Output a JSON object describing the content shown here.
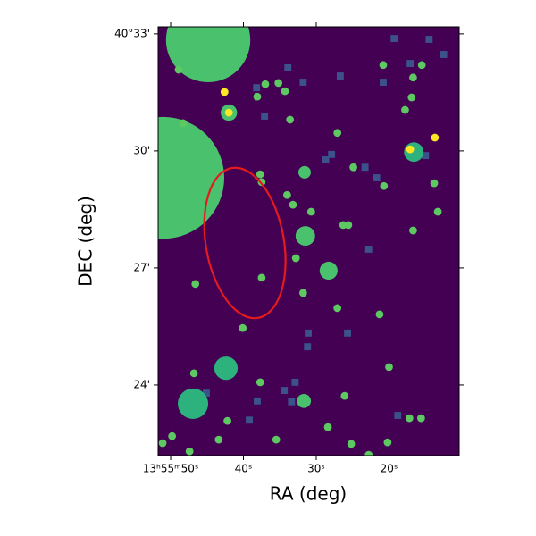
{
  "chart_data": {
    "type": "sky",
    "xlabel": "RA (deg)",
    "ylabel": "DEC (deg)",
    "xlim": [
      51.72,
      10.37
    ],
    "ylim": [
      22.19,
      33.18
    ],
    "xticks": [
      {
        "value": 50,
        "label": "13ʰ55ᵐ50ˢ"
      },
      {
        "value": 40,
        "label": "40ˢ"
      },
      {
        "value": 30,
        "label": "30ˢ"
      },
      {
        "value": 20,
        "label": "20ˢ"
      }
    ],
    "yticks": [
      {
        "value": 33,
        "label": "40°33'"
      },
      {
        "value": 30,
        "label": "30'"
      },
      {
        "value": 27,
        "label": "27'"
      },
      {
        "value": 24,
        "label": "24'"
      }
    ],
    "background": "#440154",
    "series": [
      {
        "marker": "square",
        "color": "#3b528b",
        "r": 0.09,
        "x": [
          19.3,
          14.5,
          12.5,
          17.1,
          33.9,
          31.8,
          26.7,
          20.8,
          38.2,
          37.1,
          27.9,
          28.7,
          23.3,
          21.7,
          15.0,
          22.8,
          31.1,
          25.7,
          31.2,
          32.9,
          34.4,
          38.1,
          33.4,
          45.1,
          39.2,
          18.8
        ],
        "y": [
          32.88,
          32.86,
          32.47,
          32.24,
          32.13,
          31.76,
          31.92,
          31.76,
          31.62,
          30.89,
          29.91,
          29.77,
          29.58,
          29.31,
          29.88,
          27.48,
          25.33,
          25.33,
          24.98,
          24.07,
          23.86,
          23.59,
          23.57,
          23.79,
          23.1,
          23.22
        ]
      },
      {
        "marker": "circle",
        "color": "#4ac16d",
        "x": [
          44.85,
          51.0,
          31.5,
          28.3,
          42.0,
          31.6,
          31.7
        ],
        "y": [
          32.84,
          29.31,
          27.82,
          26.93,
          30.98,
          29.45,
          23.59
        ],
        "r": [
          1.08,
          1.56,
          0.25,
          0.23,
          0.21,
          0.16,
          0.18
        ]
      },
      {
        "marker": "circle",
        "color": "#2db27d",
        "x": [
          46.93,
          42.4,
          16.6
        ],
        "y": [
          23.52,
          24.43,
          29.97
        ],
        "r": [
          0.39,
          0.3,
          0.25
        ]
      },
      {
        "marker": "circle",
        "color": "#5ec962",
        "r": 0.1,
        "x": [
          37.0,
          35.2,
          34.3,
          38.1,
          33.6,
          42.6,
          20.8,
          15.5,
          16.7,
          16.9,
          17.8,
          27.1,
          24.9,
          20.7,
          13.8,
          13.3,
          16.7,
          37.7,
          37.5,
          34.0,
          33.2,
          30.7,
          26.3,
          25.6,
          32.8,
          37.5,
          46.6,
          31.8,
          27.1,
          21.3,
          40.1,
          20.0,
          46.8,
          37.7,
          26.1,
          42.2,
          28.4,
          17.2,
          15.6,
          43.4,
          35.5,
          25.2,
          20.2,
          51.1,
          49.8,
          47.4,
          22.8,
          48.9,
          48.3
        ],
        "y": [
          31.71,
          31.74,
          31.53,
          31.39,
          30.8,
          31.51,
          32.2,
          32.2,
          31.88,
          31.37,
          31.05,
          30.46,
          29.58,
          29.1,
          29.17,
          28.44,
          27.96,
          29.4,
          29.2,
          28.87,
          28.62,
          28.44,
          28.1,
          28.1,
          27.25,
          26.75,
          26.59,
          26.36,
          25.97,
          25.81,
          25.46,
          24.46,
          24.3,
          24.07,
          23.72,
          23.08,
          22.92,
          23.15,
          23.15,
          22.6,
          22.6,
          22.49,
          22.53,
          22.51,
          22.69,
          22.3,
          22.21,
          32.08,
          30.71
        ]
      },
      {
        "marker": "circle",
        "color": "#fde725",
        "r": 0.1,
        "x": [
          42.0,
          17.1,
          13.7,
          42.6
        ],
        "y": [
          30.98,
          30.04,
          30.34,
          31.51
        ]
      }
    ],
    "ellipse": {
      "x": 39.8,
      "y": 27.64,
      "width": 2.0,
      "height": 3.9,
      "angle": 10,
      "color": "#e41a1c"
    }
  }
}
